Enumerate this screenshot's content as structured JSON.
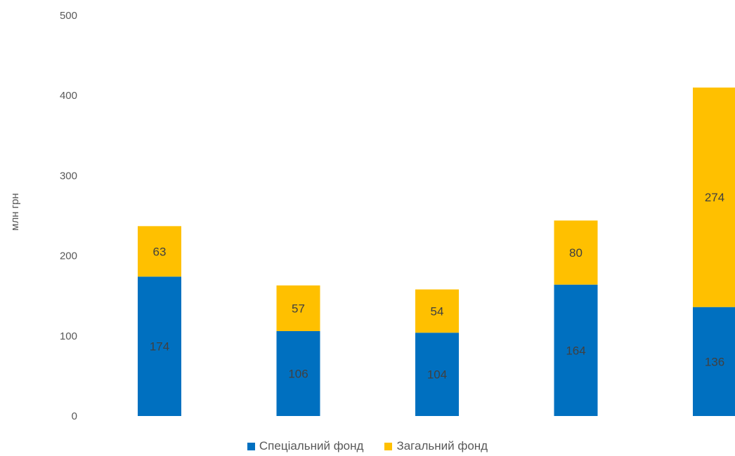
{
  "chart_data": {
    "type": "bar",
    "stacked": true,
    "categories": [
      "",
      "",
      "",
      "",
      ""
    ],
    "series": [
      {
        "name": "Спеціальний фонд",
        "values": [
          174,
          106,
          104,
          164,
          136
        ],
        "color": "#0070C0"
      },
      {
        "name": "Загальний фонд",
        "values": [
          63,
          57,
          54,
          80,
          274
        ],
        "color": "#FFC000"
      }
    ],
    "title": "",
    "xlabel": "",
    "ylabel": "млн грн",
    "ylim": [
      0,
      500
    ],
    "yticks": [
      0,
      100,
      200,
      300,
      400,
      500
    ],
    "grid": false,
    "legend_position": "bottom"
  }
}
